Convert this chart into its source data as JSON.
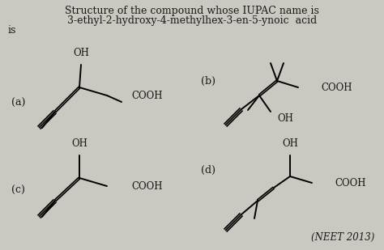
{
  "title_line1": "Structure of the compound whose IUPAC name is",
  "title_line2": "3-ethyl-2-hydroxy-4-methylhex-3-en-5-ynoic  acid",
  "title_line3": "is",
  "bg_color": "#cbc8c2",
  "text_color": "#1a1a1a",
  "neet_label": "(NEET 2013)",
  "labels": [
    "(a)",
    "(b)",
    "(c)",
    "(d)"
  ]
}
